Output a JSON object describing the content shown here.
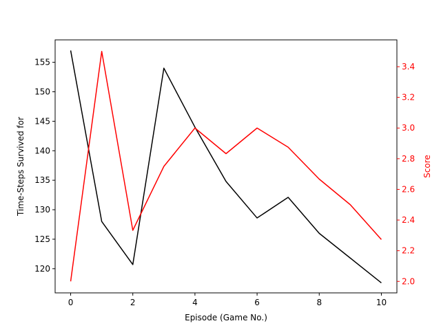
{
  "chart_data": {
    "type": "line",
    "title": "",
    "xlabel": "Episode (Game No.)",
    "xlim": [
      -0.5,
      10.5
    ],
    "x_ticks": [
      0,
      2,
      4,
      6,
      8,
      10
    ],
    "x_tick_labels": [
      "0",
      "2",
      "4",
      "6",
      "8",
      "10"
    ],
    "grid": false,
    "legend": "none",
    "left_axis": {
      "label": "Time-Steps Survived for",
      "ylim": [
        115.9,
        158.8
      ],
      "ticks": [
        120,
        125,
        130,
        135,
        140,
        145,
        150,
        155
      ],
      "tick_labels": [
        "120",
        "125",
        "130",
        "135",
        "140",
        "145",
        "150",
        "155"
      ],
      "color": "#000000"
    },
    "right_axis": {
      "label": "Score",
      "ylim": [
        1.925,
        3.575
      ],
      "ticks": [
        2.0,
        2.2,
        2.4,
        2.6,
        2.8,
        3.0,
        3.2,
        3.4
      ],
      "tick_labels": [
        "2.0",
        "2.2",
        "2.4",
        "2.6",
        "2.8",
        "3.0",
        "3.2",
        "3.4"
      ],
      "color": "#ff0000"
    },
    "x": [
      0,
      1,
      2,
      3,
      4,
      5,
      6,
      7,
      8,
      9,
      10
    ],
    "series": [
      {
        "axis": "left",
        "color": "#000000",
        "values": [
          157.0,
          128.0,
          120.7,
          154.0,
          144.0,
          134.8,
          128.6,
          132.1,
          126.0,
          121.8,
          117.6
        ]
      },
      {
        "axis": "right",
        "color": "#ff0000",
        "values": [
          2.0,
          3.5,
          2.333,
          2.75,
          3.0,
          2.833,
          3.0,
          2.875,
          2.667,
          2.5,
          2.273
        ]
      }
    ]
  }
}
